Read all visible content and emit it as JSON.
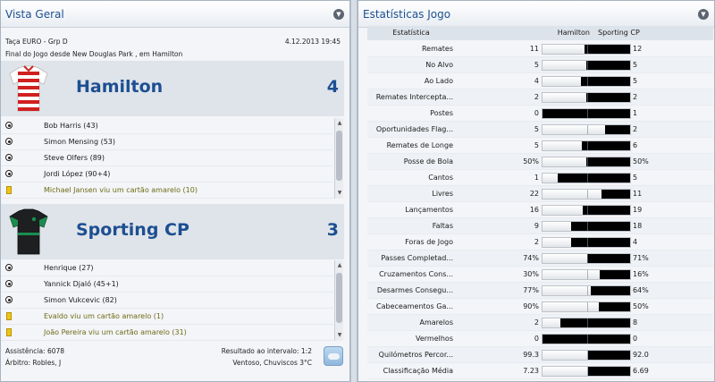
{
  "overview": {
    "title": "Vista Geral",
    "competition": "Taça EURO - Grp D",
    "datetime": "4.12.2013 19:45",
    "status": "Final do Jogo desde New Douglas Park , em Hamilton",
    "home": {
      "name": "Hamilton",
      "score": "4",
      "events": [
        {
          "type": "goal",
          "text": "Bob Harris (43)"
        },
        {
          "type": "goal",
          "text": "Simon Mensing (53)"
        },
        {
          "type": "goal",
          "text": "Steve Olfers (89)"
        },
        {
          "type": "goal",
          "text": "Jordi López (90+4)"
        },
        {
          "type": "card",
          "text": "Michael Jansen viu um cartão amarelo (10)"
        }
      ]
    },
    "away": {
      "name": "Sporting CP",
      "score": "3",
      "events": [
        {
          "type": "goal",
          "text": "Henrique (27)"
        },
        {
          "type": "goal",
          "text": "Yannick Djaló (45+1)"
        },
        {
          "type": "goal",
          "text": "Simon Vukcevic (82)"
        },
        {
          "type": "card",
          "text": "Evaldo viu um cartão amarelo (1)"
        },
        {
          "type": "card",
          "text": "João Pereira viu um cartão amarelo (31)"
        }
      ]
    },
    "attendance": "Assistência: 6078",
    "referee": "Árbitro: Robles, J",
    "halftime": "Resultado ao intervalo: 1:2",
    "weather": "Ventoso, Chuviscos 3°C"
  },
  "stats": {
    "title": "Estatísticas Jogo",
    "header": {
      "label": "Estatística",
      "home": "Hamilton",
      "away": "Sporting CP"
    },
    "rows": [
      {
        "label": "Remates",
        "home": "11",
        "away": "12",
        "away_share": 0.52
      },
      {
        "label": "No Alvo",
        "home": "5",
        "away": "5",
        "away_share": 0.5
      },
      {
        "label": "Ao Lado",
        "home": "4",
        "away": "5",
        "away_share": 0.56
      },
      {
        "label": "Remates Intercepta...",
        "home": "2",
        "away": "2",
        "away_share": 0.5
      },
      {
        "label": "Postes",
        "home": "0",
        "away": "1",
        "away_share": 1.0
      },
      {
        "label": "Oportunidades Flag...",
        "home": "5",
        "away": "2",
        "away_share": 0.29
      },
      {
        "label": "Remates de Longe",
        "home": "5",
        "away": "6",
        "away_share": 0.55
      },
      {
        "label": "Posse de Bola",
        "home": "50%",
        "away": "50%",
        "away_share": 0.5
      },
      {
        "label": "Cantos",
        "home": "1",
        "away": "5",
        "away_share": 0.83
      },
      {
        "label": "Livres",
        "home": "22",
        "away": "11",
        "away_share": 0.33
      },
      {
        "label": "Lançamentos",
        "home": "16",
        "away": "19",
        "away_share": 0.54
      },
      {
        "label": "Faltas",
        "home": "9",
        "away": "18",
        "away_share": 0.67
      },
      {
        "label": "Foras de Jogo",
        "home": "2",
        "away": "4",
        "away_share": 0.67
      },
      {
        "label": "Passes Completad...",
        "home": "74%",
        "away": "71%",
        "away_share": 0.49
      },
      {
        "label": "Cruzamentos Cons...",
        "home": "30%",
        "away": "16%",
        "away_share": 0.35
      },
      {
        "label": "Desarmes Consegu...",
        "home": "77%",
        "away": "64%",
        "away_share": 0.45
      },
      {
        "label": "Cabeceamentos Ga...",
        "home": "90%",
        "away": "50%",
        "away_share": 0.36
      },
      {
        "label": "Amarelos",
        "home": "2",
        "away": "8",
        "away_share": 0.8
      },
      {
        "label": "Vermelhos",
        "home": "0",
        "away": "0",
        "away_share": 1.0
      },
      {
        "label": "Quilómetros Percor...",
        "home": "99.3",
        "away": "92.0",
        "away_share": 0.48
      },
      {
        "label": "Classificação Média",
        "home": "7.23",
        "away": "6.69",
        "away_share": 0.48
      }
    ]
  },
  "colors": {
    "accent": "#1d4f91",
    "bar_away": "#000000",
    "card": "#f1c414",
    "card_text": "#6e6b16"
  }
}
